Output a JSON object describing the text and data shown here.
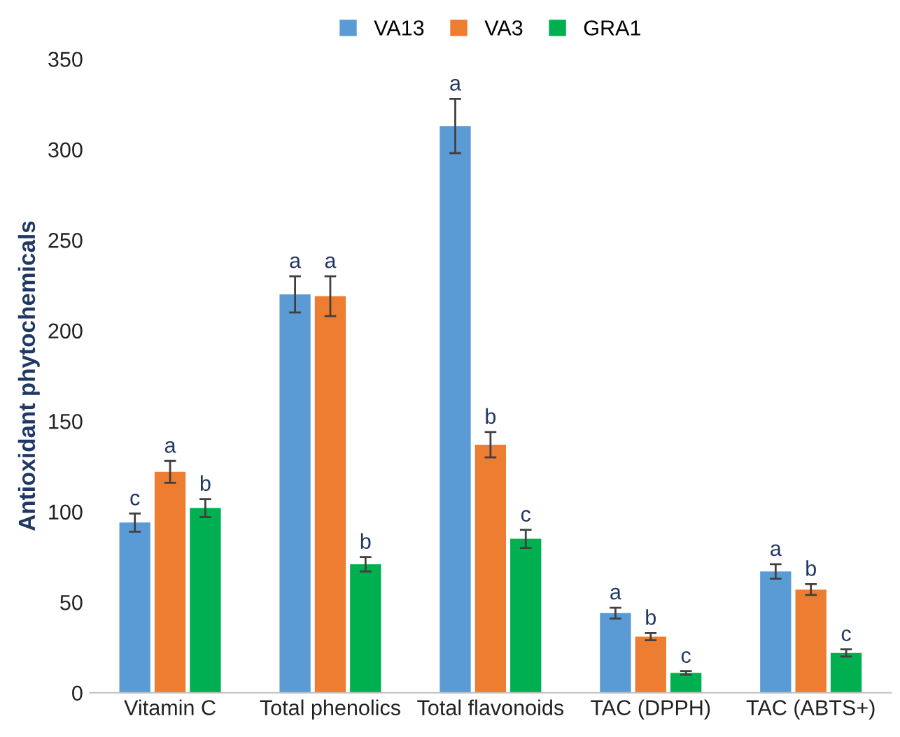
{
  "chart_data": {
    "type": "bar",
    "ylabel": "Antioxidant phytochemicals",
    "categories": [
      "Vitamin C",
      "Total phenolics",
      "Total flavonoids",
      "TAC (DPPH)",
      "TAC (ABTS+)"
    ],
    "series": [
      {
        "name": "VA13",
        "color": "#5b9bd5",
        "values": [
          94,
          220,
          313,
          44,
          67
        ],
        "errors": [
          5,
          10,
          15,
          3,
          4
        ],
        "value_labels": [
          "c",
          "a",
          "a",
          "a",
          "a"
        ]
      },
      {
        "name": "VA3",
        "color": "#ed7d31",
        "values": [
          122,
          219,
          137,
          31,
          57
        ],
        "errors": [
          6,
          11,
          7,
          2,
          3
        ],
        "value_labels": [
          "a",
          "a",
          "b",
          "b",
          "b"
        ]
      },
      {
        "name": "GRA1",
        "color": "#00b050",
        "values": [
          102,
          71,
          85,
          11,
          22
        ],
        "errors": [
          5,
          4,
          5,
          1,
          2
        ],
        "value_labels": [
          "b",
          "b",
          "c",
          "c",
          "c"
        ]
      }
    ],
    "ylim": [
      0,
      350
    ],
    "yticks": [
      0,
      50,
      100,
      150,
      200,
      250,
      300,
      350
    ],
    "grid": false,
    "legend": "top"
  }
}
